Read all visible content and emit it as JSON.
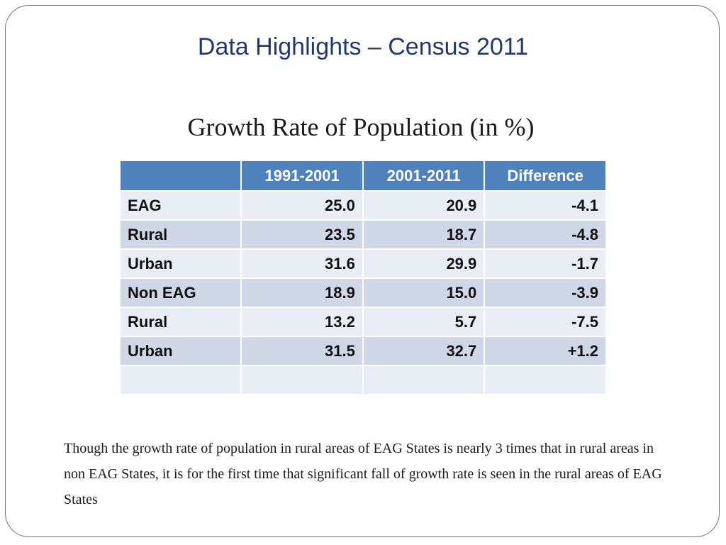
{
  "slide": {
    "title": "Data Highlights – Census 2011",
    "table_title": "Growth Rate of Population (in %)",
    "caption": "Though the growth rate of population in rural areas of EAG States is nearly 3 times that in rural areas in non EAG States, it is for the first time that significant fall of growth rate is seen in the rural areas of EAG States"
  },
  "table": {
    "headers": [
      "",
      "1991-2001",
      "2001-2011",
      "Difference"
    ],
    "rows": [
      {
        "label": "EAG",
        "p1": "25.0",
        "p2": "20.9",
        "diff": "-4.1"
      },
      {
        "label": "Rural",
        "p1": "23.5",
        "p2": "18.7",
        "diff": "-4.8"
      },
      {
        "label": "Urban",
        "p1": "31.6",
        "p2": "29.9",
        "diff": "-1.7"
      },
      {
        "label": "Non EAG",
        "p1": "18.9",
        "p2": "15.0",
        "diff": "-3.9"
      },
      {
        "label": "Rural",
        "p1": "13.2",
        "p2": "5.7",
        "diff": "-7.5"
      },
      {
        "label": "Urban",
        "p1": "31.5",
        "p2": "32.7",
        "diff": "+1.2"
      },
      {
        "label": "",
        "p1": "",
        "p2": "",
        "diff": ""
      }
    ]
  },
  "colors": {
    "title": "#1f3a6e",
    "header_bg": "#4f81bd",
    "row_light": "#e9edf4",
    "row_dark": "#d0d8e8"
  }
}
